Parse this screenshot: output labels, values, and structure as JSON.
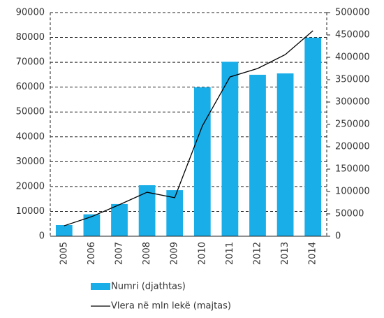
{
  "chart_data": {
    "type": "bar_line",
    "categories": [
      "2005",
      "2006",
      "2007",
      "2008",
      "2009",
      "2010",
      "2011",
      "2012",
      "2013",
      "2014"
    ],
    "series": [
      {
        "name": "Numri (djathtas)",
        "type": "bar",
        "axis": "y2",
        "color": "#19aee8",
        "values": [
          25000,
          49000,
          72000,
          114000,
          103000,
          333000,
          390000,
          361000,
          364000,
          444000
        ]
      },
      {
        "name": "Vlera në mln lekë (majtas)",
        "type": "line",
        "axis": "y",
        "color": "#000000",
        "values": [
          4200,
          7900,
          12700,
          17700,
          15500,
          44400,
          64100,
          67500,
          73100,
          82700
        ]
      }
    ],
    "ylim": [
      0,
      90000
    ],
    "yticks": [
      0,
      10000,
      20000,
      30000,
      40000,
      50000,
      60000,
      70000,
      80000,
      90000
    ],
    "y2lim": [
      0,
      500000
    ],
    "y2ticks": [
      0,
      50000,
      100000,
      150000,
      200000,
      250000,
      300000,
      350000,
      400000,
      450000,
      500000
    ],
    "grid": true,
    "legend": "bottom"
  }
}
